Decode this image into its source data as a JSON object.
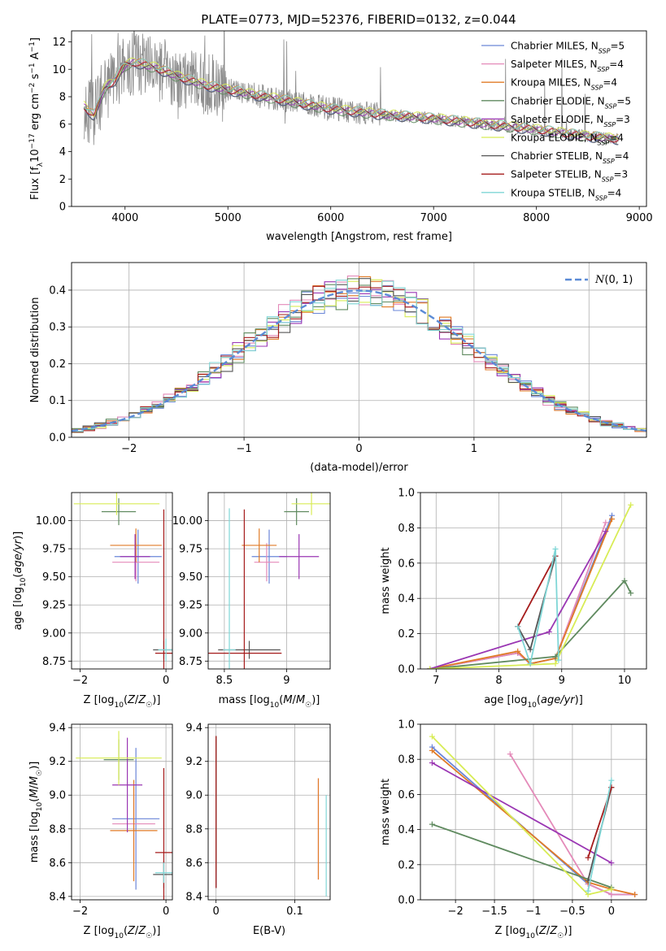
{
  "figure": {
    "title": "PLATE=0773, MJD=52376, FIBERID=0132, z=0.044"
  },
  "chart_data": [
    {
      "type": "line",
      "name": "spectrum",
      "xlabel": "wavelength [Angstrom, rest frame]",
      "ylabel": "Flux [f_λ 10^-17 erg cm^-2 s^-1 A^-1]",
      "xlim": [
        3480,
        9070
      ],
      "ylim": [
        0,
        12.8
      ],
      "xticks": [
        4000,
        5000,
        6000,
        7000,
        8000,
        9000
      ],
      "yticks": [
        0,
        2,
        4,
        6,
        8,
        10,
        12
      ],
      "grid": false,
      "legend": "right",
      "data_range": [
        3600,
        8800
      ],
      "series": [
        {
          "name": "Chabrier MILES, N_SSP=5",
          "color": "#6a86d8"
        },
        {
          "name": "Salpeter MILES, N_SSP=4",
          "color": "#e48ab9"
        },
        {
          "name": "Kroupa MILES, N_SSP=4",
          "color": "#e07b27"
        },
        {
          "name": "Chabrier ELODIE, N_SSP=5",
          "color": "#5f8a5f"
        },
        {
          "name": "Salpeter ELODIE, N_SSP=3",
          "color": "#9a36b3"
        },
        {
          "name": "Kroupa ELODIE, N_SSP=4",
          "color": "#d8ec55"
        },
        {
          "name": "Chabrier STELIB, N_SSP=4",
          "color": "#555555"
        },
        {
          "name": "Salpeter STELIB, N_SSP=3",
          "color": "#a51b1b"
        },
        {
          "name": "Kroupa STELIB, N_SSP=4",
          "color": "#7fd6d6"
        }
      ],
      "continuum": {
        "x": [
          3600,
          3700,
          3800,
          3900,
          4000,
          4100,
          4300,
          4500,
          4800,
          5000,
          5500,
          6000,
          6500,
          7000,
          7500,
          8000,
          8500,
          8800
        ],
        "y": [
          7.3,
          6.6,
          8.6,
          9.2,
          10.3,
          10.5,
          10.1,
          9.5,
          8.8,
          8.5,
          7.8,
          7.1,
          6.7,
          6.4,
          6.0,
          5.6,
          5.1,
          4.9
        ]
      }
    },
    {
      "type": "line",
      "name": "residuals",
      "xlabel": "(data-model)/error",
      "ylabel": "Normed distribution",
      "xlim": [
        -2.5,
        2.5
      ],
      "ylim": [
        0,
        0.475
      ],
      "xticks": [
        -2,
        -1,
        0,
        1,
        2
      ],
      "yticks": [
        0.0,
        0.1,
        0.2,
        0.3,
        0.4
      ],
      "grid": true,
      "legend": "top-right",
      "series": [
        {
          "name": "N(0,1)",
          "color": "#5b8bd6",
          "style": "dashed",
          "mu": 0,
          "sigma": 1
        }
      ],
      "hist_colors": [
        "#6a86d8",
        "#e48ab9",
        "#e07b27",
        "#5f8a5f",
        "#9a36b3",
        "#d8ec55",
        "#555555",
        "#a51b1b",
        "#7fd6d6"
      ],
      "bins": [
        -2.5,
        2.5,
        50
      ]
    },
    {
      "type": "scatter",
      "name": "age-vs-Z",
      "xlabel": "Z [log10(Z/Z_sun)]",
      "ylabel": "age [log10(age/yr)]",
      "xlim": [
        -2.2,
        0.15
      ],
      "ylim": [
        8.68,
        10.25
      ],
      "xticks": [
        -2,
        0
      ],
      "yticks": [
        8.75,
        9.0,
        9.25,
        9.5,
        9.75,
        10.0
      ],
      "grid": true,
      "points": [
        {
          "x": -0.65,
          "xerr": 0.55,
          "y": 9.68,
          "yerr": 0.24,
          "color": "#6a86d8"
        },
        {
          "x": -0.7,
          "xerr": 0.55,
          "y": 9.63,
          "yerr": 0.17,
          "color": "#e48ab9"
        },
        {
          "x": -0.7,
          "xerr": 0.6,
          "y": 9.78,
          "yerr": 0.15,
          "color": "#e07b27"
        },
        {
          "x": -1.1,
          "xerr": 0.4,
          "y": 10.08,
          "yerr": 0.12,
          "color": "#5f8a5f"
        },
        {
          "x": -0.72,
          "xerr": 0.35,
          "y": 9.68,
          "yerr": 0.2,
          "color": "#9a36b3"
        },
        {
          "x": -1.15,
          "xerr": 1.0,
          "y": 10.15,
          "yerr": 0.1,
          "color": "#d8ec55"
        },
        {
          "x": -0.05,
          "xerr": 0.25,
          "y": 8.85,
          "yerr": 0.08,
          "color": "#555555"
        },
        {
          "x": -0.05,
          "xerr": 0.2,
          "y": 8.82,
          "yerr": 1.28,
          "color": "#a51b1b"
        },
        {
          "x": 0.0,
          "xerr": 0.18,
          "y": 8.85,
          "yerr": 0.1,
          "color": "#7fd6d6"
        }
      ]
    },
    {
      "type": "scatter",
      "name": "age-vs-mass",
      "xlabel": "mass [log10(M/M_sun)]",
      "ylabel": "",
      "xlim": [
        8.37,
        9.35
      ],
      "ylim": [
        8.68,
        10.25
      ],
      "xticks": [
        8.5,
        9.0
      ],
      "yticks": [
        8.75,
        9.0,
        9.25,
        9.5,
        9.75,
        10.0
      ],
      "grid": true,
      "points": [
        {
          "x": 8.86,
          "xerr": 0.14,
          "y": 9.68,
          "yerr": 0.24,
          "color": "#6a86d8"
        },
        {
          "x": 8.84,
          "xerr": 0.1,
          "y": 9.63,
          "yerr": 0.17,
          "color": "#e48ab9"
        },
        {
          "x": 8.78,
          "xerr": 0.14,
          "y": 9.78,
          "yerr": 0.15,
          "color": "#e07b27"
        },
        {
          "x": 9.08,
          "xerr": 0.1,
          "y": 10.08,
          "yerr": 0.12,
          "color": "#5f8a5f"
        },
        {
          "x": 9.1,
          "xerr": 0.16,
          "y": 9.68,
          "yerr": 0.2,
          "color": "#9a36b3"
        },
        {
          "x": 9.2,
          "xerr": 0.16,
          "y": 10.15,
          "yerr": 0.1,
          "color": "#d8ec55"
        },
        {
          "x": 8.7,
          "xerr": 0.25,
          "y": 8.85,
          "yerr": 0.08,
          "color": "#555555"
        },
        {
          "x": 8.66,
          "xerr": 0.3,
          "y": 8.82,
          "yerr": 1.28,
          "color": "#a51b1b"
        },
        {
          "x": 8.54,
          "xerr": 0.05,
          "y": 8.85,
          "yerr": 1.26,
          "color": "#7fd6d6"
        }
      ]
    },
    {
      "type": "line",
      "name": "mass-weight-vs-age",
      "xlabel": "age [log10(age/yr)]",
      "ylabel": "mass weight",
      "xlim": [
        6.75,
        10.35
      ],
      "ylim": [
        0,
        1.0
      ],
      "xticks": [
        7,
        8,
        9,
        10
      ],
      "yticks": [
        0.0,
        0.2,
        0.4,
        0.6,
        0.8,
        1.0
      ],
      "grid": true,
      "series": [
        {
          "color": "#6a86d8",
          "x": [
            6.9,
            8.3,
            8.5,
            8.9,
            9.8
          ],
          "y": [
            0.0,
            0.09,
            0.03,
            0.06,
            0.87
          ]
        },
        {
          "color": "#e48ab9",
          "x": [
            6.9,
            8.3,
            8.5,
            8.9,
            9.7
          ],
          "y": [
            0.0,
            0.09,
            0.03,
            0.06,
            0.83
          ]
        },
        {
          "color": "#e07b27",
          "x": [
            6.9,
            8.3,
            8.5,
            8.9,
            9.8
          ],
          "y": [
            0.0,
            0.1,
            0.03,
            0.06,
            0.85
          ]
        },
        {
          "color": "#5f8a5f",
          "x": [
            6.9,
            8.9,
            10.0,
            10.1
          ],
          "y": [
            0.0,
            0.07,
            0.5,
            0.43
          ]
        },
        {
          "color": "#9a36b3",
          "x": [
            6.9,
            8.8,
            9.7
          ],
          "y": [
            0.0,
            0.21,
            0.78
          ]
        },
        {
          "color": "#d8ec55",
          "x": [
            6.9,
            8.9,
            10.1
          ],
          "y": [
            0.0,
            0.03,
            0.93
          ]
        },
        {
          "color": "#555555",
          "x": [
            8.3,
            8.5,
            8.9
          ],
          "y": [
            0.24,
            0.11,
            0.64
          ]
        },
        {
          "color": "#a51b1b",
          "x": [
            8.3,
            8.9
          ],
          "y": [
            0.24,
            0.64
          ]
        },
        {
          "color": "#7fd6d6",
          "x": [
            8.3,
            8.5,
            8.9,
            8.95
          ],
          "y": [
            0.24,
            0.03,
            0.68,
            0.05
          ]
        }
      ]
    },
    {
      "type": "scatter",
      "name": "mass-vs-Z",
      "xlabel": "Z [log10(Z/Z_sun)]",
      "ylabel": "mass [log10(M/M_sun)]",
      "xlim": [
        -2.2,
        0.15
      ],
      "ylim": [
        8.38,
        9.42
      ],
      "xticks": [
        -2,
        0
      ],
      "yticks": [
        8.4,
        8.6,
        8.8,
        9.0,
        9.2,
        9.4
      ],
      "grid": true,
      "points": [
        {
          "x": -0.7,
          "xerr": 0.55,
          "y": 8.86,
          "yerr": 0.42,
          "color": "#6a86d8"
        },
        {
          "x": -0.75,
          "xerr": 0.5,
          "y": 8.83,
          "yerr": 0.22,
          "color": "#e48ab9"
        },
        {
          "x": -0.75,
          "xerr": 0.55,
          "y": 8.79,
          "yerr": 0.3,
          "color": "#e07b27"
        },
        {
          "x": -1.1,
          "xerr": 0.35,
          "y": 9.21,
          "yerr": 0.12,
          "color": "#5f8a5f"
        },
        {
          "x": -0.9,
          "xerr": 0.35,
          "y": 9.06,
          "yerr": 0.28,
          "color": "#9a36b3"
        },
        {
          "x": -1.1,
          "xerr": 1.0,
          "y": 9.22,
          "yerr": 0.16,
          "color": "#d8ec55"
        },
        {
          "x": -0.05,
          "xerr": 0.25,
          "y": 8.53,
          "yerr": 0.08,
          "color": "#555555"
        },
        {
          "x": -0.05,
          "xerr": 0.2,
          "y": 8.66,
          "yerr": 0.5,
          "color": "#a51b1b"
        },
        {
          "x": -0.05,
          "xerr": 0.2,
          "y": 8.54,
          "yerr": 0.06,
          "color": "#7fd6d6"
        }
      ]
    },
    {
      "type": "scatter",
      "name": "mass-vs-EBV",
      "xlabel": "E(B-V)",
      "ylabel": "",
      "xlim": [
        -0.01,
        0.145
      ],
      "ylim": [
        8.38,
        9.42
      ],
      "xticks": [
        0.0,
        0.1
      ],
      "yticks": [
        8.4,
        8.6,
        8.8,
        9.0,
        9.2,
        9.4
      ],
      "grid": true,
      "points": [
        {
          "x": 0.0,
          "y": 8.9,
          "yerr": 0.45,
          "color": "#6a86d8"
        },
        {
          "x": 0.13,
          "y": 8.8,
          "yerr": 0.3,
          "color": "#e48ab9"
        },
        {
          "x": 0.13,
          "y": 8.8,
          "yerr": 0.3,
          "color": "#e07b27"
        },
        {
          "x": 0.0,
          "y": 8.95,
          "yerr": 0.4,
          "color": "#5f8a5f"
        },
        {
          "x": 0.0,
          "y": 8.95,
          "yerr": 0.4,
          "color": "#9a36b3"
        },
        {
          "x": 0.0,
          "y": 8.95,
          "yerr": 0.4,
          "color": "#d8ec55"
        },
        {
          "x": 0.0,
          "y": 8.9,
          "yerr": 0.45,
          "color": "#555555"
        },
        {
          "x": 0.0,
          "y": 8.9,
          "yerr": 0.45,
          "color": "#a51b1b"
        },
        {
          "x": 0.14,
          "y": 8.7,
          "yerr": 0.3,
          "color": "#7fd6d6"
        }
      ]
    },
    {
      "type": "line",
      "name": "mass-weight-vs-Z",
      "xlabel": "Z [log10(Z/Z_sun)]",
      "ylabel": "mass weight",
      "xlim": [
        -2.45,
        0.45
      ],
      "ylim": [
        0,
        1.0
      ],
      "xticks": [
        -2.0,
        -1.5,
        -1.0,
        -0.5,
        0.0
      ],
      "yticks": [
        0.0,
        0.2,
        0.4,
        0.6,
        0.8,
        1.0
      ],
      "grid": true,
      "series": [
        {
          "color": "#6a86d8",
          "x": [
            -2.3,
            -0.3,
            0.0,
            0.3
          ],
          "y": [
            0.87,
            0.09,
            0.03,
            0.03
          ]
        },
        {
          "color": "#e48ab9",
          "x": [
            -1.3,
            -0.3,
            0.0,
            0.3
          ],
          "y": [
            0.83,
            0.09,
            0.03,
            0.03
          ]
        },
        {
          "color": "#e07b27",
          "x": [
            -2.3,
            -0.3,
            0.0,
            0.3
          ],
          "y": [
            0.85,
            0.1,
            0.06,
            0.03
          ]
        },
        {
          "color": "#5f8a5f",
          "x": [
            -2.3,
            0.0
          ],
          "y": [
            0.43,
            0.07
          ]
        },
        {
          "color": "#9a36b3",
          "x": [
            -2.3,
            0.0
          ],
          "y": [
            0.78,
            0.21
          ]
        },
        {
          "color": "#d8ec55",
          "x": [
            -2.3,
            -0.3,
            0.0
          ],
          "y": [
            0.93,
            0.03,
            0.06
          ]
        },
        {
          "color": "#555555",
          "x": [
            -0.3,
            0.0
          ],
          "y": [
            0.11,
            0.64
          ]
        },
        {
          "color": "#a51b1b",
          "x": [
            -0.3,
            0.0
          ],
          "y": [
            0.24,
            0.64
          ]
        },
        {
          "color": "#7fd6d6",
          "x": [
            -0.3,
            0.0
          ],
          "y": [
            0.05,
            0.68
          ]
        }
      ]
    }
  ]
}
